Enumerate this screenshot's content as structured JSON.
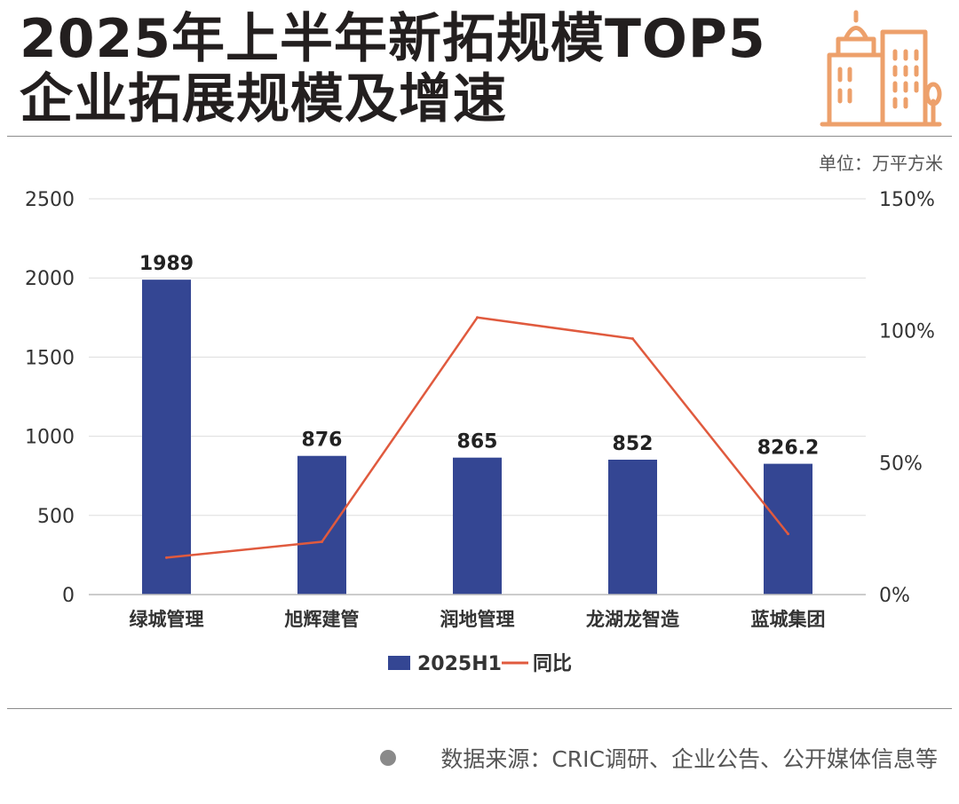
{
  "header": {
    "title_line1": "2025年上半年新拓规模TOP5",
    "title_line2": "企业拓展规模及增速",
    "unit": "单位：万平方米",
    "logo_icon": "city-buildings-icon"
  },
  "footer": {
    "source": "数据来源：CRIC调研、企业公告、公开媒体信息等"
  },
  "colors": {
    "bar": "#344693",
    "line": "#e05a3e",
    "logo": "#eda06b",
    "grid": "#dddddd",
    "axis": "#bbbbbb"
  },
  "chart_data": {
    "type": "bar",
    "categories": [
      "绿城管理",
      "旭辉建管",
      "润地管理",
      "龙湖龙智造",
      "蓝城集团"
    ],
    "series": [
      {
        "name": "2025H1",
        "type": "bar",
        "axis": "left",
        "values": [
          1989,
          876,
          865,
          852,
          826.2
        ],
        "labels": [
          "1989",
          "876",
          "865",
          "852",
          "826.2"
        ]
      },
      {
        "name": "同比",
        "type": "line",
        "axis": "right",
        "values": [
          14,
          20,
          105,
          97,
          23
        ]
      }
    ],
    "ylim": [
      0,
      2500
    ],
    "yticks": [
      "0",
      "500",
      "1000",
      "1500",
      "2000",
      "2500"
    ],
    "y2lim": [
      0,
      150
    ],
    "y2ticks": [
      "0%",
      "50%",
      "100%",
      "150%"
    ],
    "grid": true,
    "legend": "bottom"
  }
}
